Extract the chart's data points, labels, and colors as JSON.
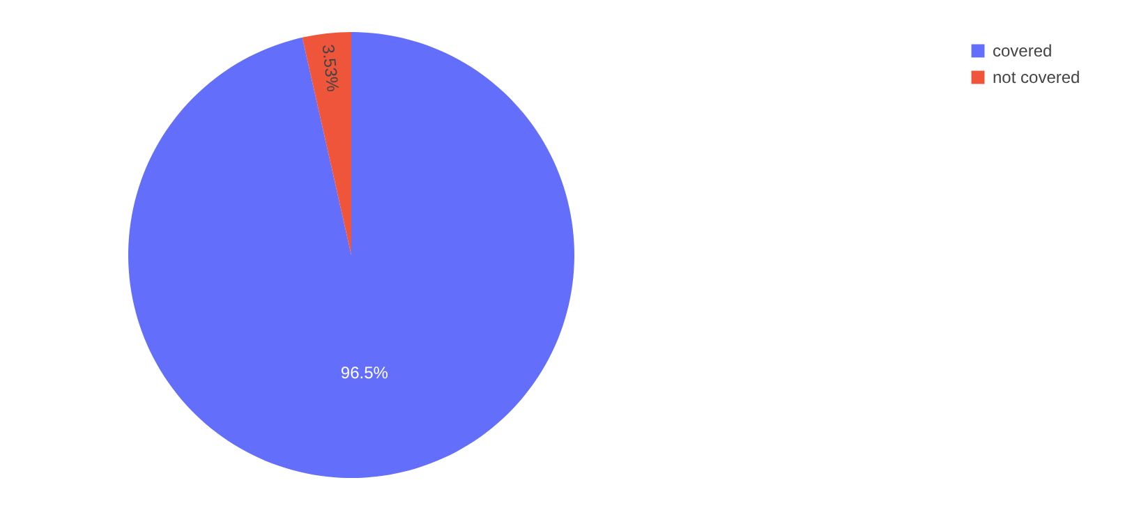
{
  "chart_data": {
    "type": "pie",
    "categories": [
      "covered",
      "not covered"
    ],
    "values": [
      96.47,
      3.53
    ],
    "colors": [
      "#636efa",
      "#ef553b"
    ],
    "value_labels": [
      "96.5%",
      "3.53%"
    ],
    "legend": "top right"
  }
}
